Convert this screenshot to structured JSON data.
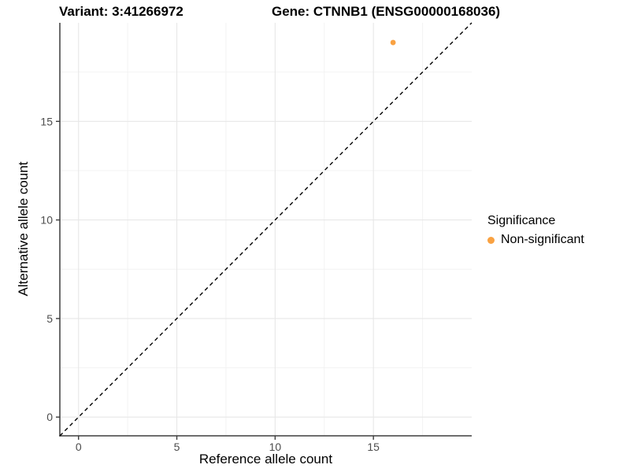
{
  "header": {
    "variant_title": "Variant: 3:41266972",
    "gene_title": "Gene: CTNNB1 (ENSG00000168036)"
  },
  "chart_data": {
    "type": "scatter",
    "title": "Variant: 3:41266972  /  Gene: CTNNB1 (ENSG00000168036)",
    "xlabel": "Reference allele count",
    "ylabel": "Alternative allele count",
    "xlim": [
      -0.95,
      20
    ],
    "ylim": [
      -0.95,
      20
    ],
    "x_major_ticks": [
      0,
      5,
      10,
      15
    ],
    "y_major_ticks": [
      0,
      5,
      10,
      15
    ],
    "x_minor_ticks": [
      2.5,
      7.5,
      12.5,
      17.5
    ],
    "y_minor_ticks": [
      2.5,
      7.5,
      12.5,
      17.5
    ],
    "grid": "major-and-minor",
    "series": [
      {
        "name": "Non-significant",
        "color": "#F9A242",
        "points": [
          {
            "x": 16,
            "y": 19
          }
        ]
      }
    ],
    "reference_line": {
      "type": "identity y=x",
      "style": "dashed",
      "color": "#000000"
    },
    "legend_position": "right"
  },
  "legend": {
    "title": "Significance",
    "items": [
      {
        "label": "Non-significant",
        "color": "#F9A242"
      }
    ]
  },
  "colors": {
    "background": "#ffffff",
    "axis_line": "#3d3d3d",
    "tick_text": "#4d4d4d",
    "grid_major": "#e7e7e7",
    "grid_minor": "#f2f2f2",
    "point": "#F9A242",
    "reference_line": "#000000"
  }
}
